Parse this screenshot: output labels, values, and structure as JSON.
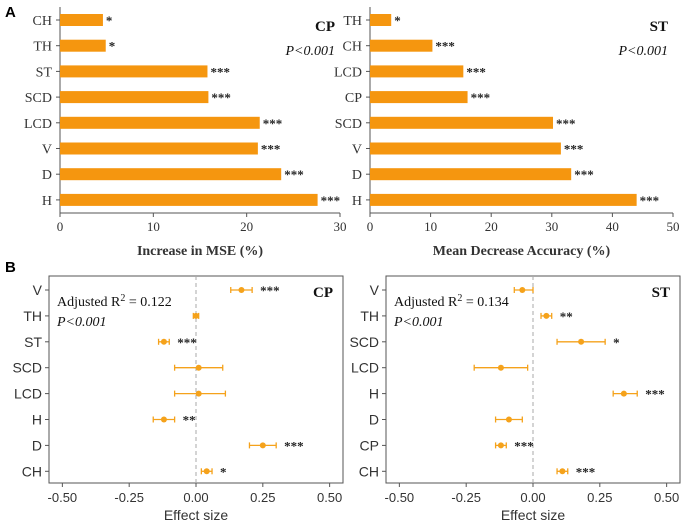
{
  "panel_labels": {
    "a": "A",
    "b": "B"
  },
  "colors": {
    "bar": "#f5960f",
    "point": "#f5a21b",
    "axis": "#555555",
    "zero_line": "#aaaaaa",
    "text": "#333333"
  },
  "chart_data": [
    {
      "id": "a-cp",
      "type": "bar",
      "orientation": "horizontal",
      "title": "CP",
      "stat": "P<0.001",
      "categories": [
        "CH",
        "TH",
        "ST",
        "SCD",
        "LCD",
        "V",
        "D",
        "H"
      ],
      "values": [
        4.6,
        4.9,
        15.8,
        15.9,
        21.4,
        21.2,
        23.7,
        27.6
      ],
      "significance": [
        "*",
        "*",
        "***",
        "***",
        "***",
        "***",
        "***",
        "***"
      ],
      "xlabel": "Increase in MSE (%)",
      "xlim": [
        0,
        30
      ],
      "xticks": [
        0,
        10,
        20,
        30
      ]
    },
    {
      "id": "a-st",
      "type": "bar",
      "orientation": "horizontal",
      "title": "ST",
      "stat": "P<0.001",
      "categories": [
        "TH",
        "CH",
        "LCD",
        "CP",
        "SCD",
        "V",
        "D",
        "H"
      ],
      "values": [
        3.5,
        10.3,
        15.4,
        16.1,
        30.2,
        31.5,
        33.2,
        44.0
      ],
      "significance": [
        "*",
        "***",
        "***",
        "***",
        "***",
        "***",
        "***",
        "***"
      ],
      "xlabel": "Mean Decrease Accuracy (%)",
      "xlim": [
        0,
        50
      ],
      "xticks": [
        0,
        10,
        20,
        30,
        40,
        50
      ]
    },
    {
      "id": "b-cp",
      "type": "scatter",
      "subtype": "forest",
      "title": "CP",
      "r2_prefix": "Adjusted R",
      "r2_suffix": " = 0.122",
      "stat": "P<0.001",
      "categories": [
        "V",
        "TH",
        "ST",
        "SCD",
        "LCD",
        "H",
        "D",
        "CH"
      ],
      "estimates": [
        0.17,
        0.0,
        -0.12,
        0.01,
        0.01,
        -0.12,
        0.25,
        0.04
      ],
      "ci_low": [
        0.13,
        -0.01,
        -0.14,
        -0.08,
        -0.08,
        -0.16,
        0.2,
        0.02
      ],
      "ci_high": [
        0.21,
        0.01,
        -0.1,
        0.1,
        0.11,
        -0.08,
        0.3,
        0.06
      ],
      "significance": [
        "***",
        "",
        "***",
        "",
        "",
        "**",
        "***",
        "*"
      ],
      "xlabel": "Effect size",
      "xlim": [
        -0.55,
        0.55
      ],
      "xticks": [
        "-0.50",
        "-0.25",
        "0.00",
        "0.25",
        "0.50"
      ]
    },
    {
      "id": "b-st",
      "type": "scatter",
      "subtype": "forest",
      "title": "ST",
      "r2_prefix": "Adjusted R",
      "r2_suffix": " = 0.134",
      "stat": "P<0.001",
      "categories": [
        "V",
        "TH",
        "SCD",
        "LCD",
        "H",
        "D",
        "CP",
        "CH"
      ],
      "estimates": [
        -0.04,
        0.05,
        0.18,
        -0.12,
        0.34,
        -0.09,
        -0.12,
        0.11
      ],
      "ci_low": [
        -0.07,
        0.03,
        0.09,
        -0.22,
        0.3,
        -0.14,
        -0.14,
        0.09
      ],
      "ci_high": [
        0.0,
        0.07,
        0.27,
        -0.02,
        0.39,
        -0.04,
        -0.1,
        0.13
      ],
      "significance": [
        "",
        "**",
        "*",
        "",
        "***",
        "",
        "***",
        "***"
      ],
      "xlabel": "Effect size",
      "xlim": [
        -0.55,
        0.55
      ],
      "xticks": [
        "-0.50",
        "-0.25",
        "0.00",
        "0.25",
        "0.50"
      ]
    }
  ]
}
